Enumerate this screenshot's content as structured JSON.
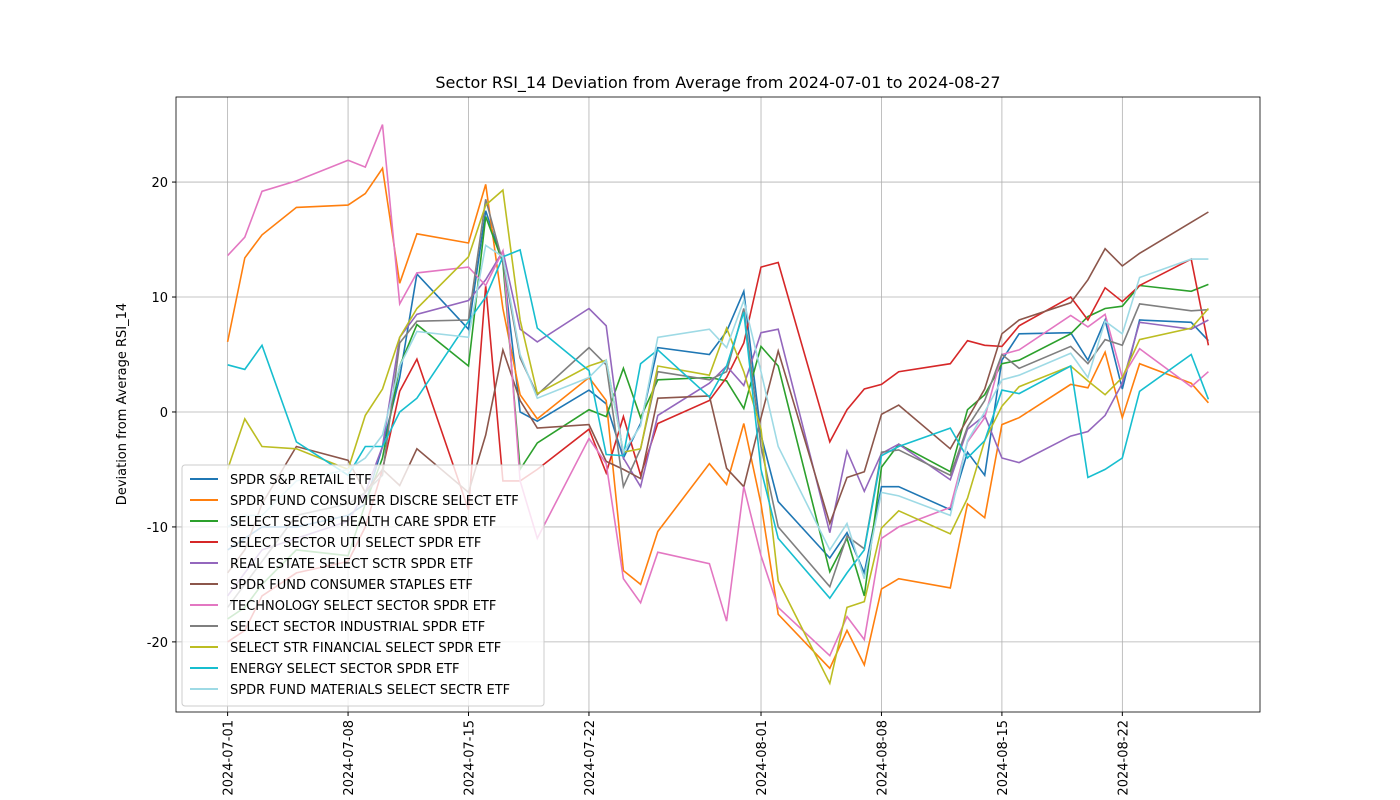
{
  "chart_data": {
    "type": "line",
    "title": "Sector RSI_14 Deviation from Average from 2024-07-01 to 2024-08-27",
    "y_label": "Deviation from Average RSI_14",
    "x": [
      "2024-07-01",
      "2024-07-02",
      "2024-07-03",
      "2024-07-05",
      "2024-07-08",
      "2024-07-09",
      "2024-07-10",
      "2024-07-11",
      "2024-07-12",
      "2024-07-15",
      "2024-07-16",
      "2024-07-17",
      "2024-07-18",
      "2024-07-19",
      "2024-07-22",
      "2024-07-23",
      "2024-07-24",
      "2024-07-25",
      "2024-07-26",
      "2024-07-29",
      "2024-07-30",
      "2024-07-31",
      "2024-08-01",
      "2024-08-02",
      "2024-08-05",
      "2024-08-06",
      "2024-08-07",
      "2024-08-08",
      "2024-08-09",
      "2024-08-12",
      "2024-08-13",
      "2024-08-14",
      "2024-08-15",
      "2024-08-16",
      "2024-08-19",
      "2024-08-20",
      "2024-08-21",
      "2024-08-22",
      "2024-08-23",
      "2024-08-26",
      "2024-08-27"
    ],
    "xlim": [
      "2024-06-28",
      "2024-08-30"
    ],
    "xticks": [
      "2024-07-01",
      "2024-07-08",
      "2024-07-15",
      "2024-07-22",
      "2024-08-01",
      "2024-08-08",
      "2024-08-15",
      "2024-08-22"
    ],
    "ylim": [
      -26.1,
      27.4
    ],
    "yticks": [
      -20,
      -10,
      0,
      10,
      20
    ],
    "grid": true,
    "legend": "lower left",
    "series": [
      {
        "name": "SPDR S&P RETAIL ETF",
        "color": "#1f77b4",
        "values": [
          -12,
          -11,
          -10,
          -10,
          -9,
          -8,
          -3,
          3,
          12,
          7.2,
          17.5,
          13,
          0,
          -0.8,
          1.9,
          0.7,
          -4,
          -1,
          5.6,
          5,
          7,
          10.5,
          -2,
          -7.8,
          -12.7,
          -10.5,
          -14,
          -6.5,
          -6.5,
          -8.5,
          -3.5,
          -5.5,
          4.5,
          6.8,
          6.9,
          4.5,
          8,
          2,
          8,
          7.8,
          6.2
        ]
      },
      {
        "name": "SPDR FUND CONSUMER DISCRE SELECT ETF",
        "color": "#ff7f0e",
        "values": [
          6.1,
          13.4,
          15.4,
          17.8,
          18,
          19,
          21.2,
          11.2,
          15.5,
          14.7,
          19.8,
          9,
          1.5,
          -0.6,
          3,
          1,
          -13.8,
          -15,
          -10.4,
          -4.5,
          -6.3,
          -1,
          -8,
          -17.6,
          -22.3,
          -19,
          -22,
          -15.4,
          -14.5,
          -15.3,
          -8,
          -9.2,
          -1.1,
          -0.5,
          2.4,
          2.1,
          5.2,
          -0.5,
          4.2,
          2.5,
          0.8
        ]
      },
      {
        "name": "SELECT SECTOR HEALTH CARE SPDR ETF",
        "color": "#2ca02c",
        "values": [
          -18,
          -17,
          -15,
          -12,
          -12.5,
          -8,
          -4,
          4,
          7.6,
          4,
          17,
          13,
          -5,
          -2.7,
          0.2,
          -0.4,
          3.8,
          -0.5,
          2.8,
          3,
          2.7,
          0.3,
          5.7,
          4,
          -13.9,
          -11,
          -16,
          -4.8,
          -2.8,
          -5.2,
          0.2,
          1.5,
          4.2,
          4.5,
          6.8,
          8.3,
          9,
          9.2,
          11,
          10.5,
          11.1
        ]
      },
      {
        "name": "SELECT SECTOR UTI SELECT SPDR ETF",
        "color": "#d62728",
        "values": [
          -20,
          -19,
          -16,
          -14,
          -13,
          -10,
          -5,
          1.8,
          4.6,
          -8.5,
          11,
          -6,
          -6,
          -5,
          -1.5,
          -5.3,
          -0.4,
          -5.5,
          -1,
          1,
          3,
          6,
          12.6,
          13,
          -2.6,
          0.2,
          2,
          2.4,
          3.5,
          4.2,
          6.2,
          5.8,
          5.7,
          7.5,
          10,
          8,
          10.8,
          9.6,
          11,
          13.3,
          5.8
        ]
      },
      {
        "name": "REAL ESTATE SELECT SCTR SPDR ETF",
        "color": "#9467bd",
        "values": [
          -16,
          -14,
          -12,
          -11,
          -9.5,
          -7,
          -3,
          6.5,
          8.5,
          9.7,
          11.5,
          14,
          7.2,
          6.1,
          9,
          7.5,
          -4,
          -6.5,
          -0.3,
          2.5,
          4,
          2.3,
          6.9,
          7.2,
          -10.5,
          -3.4,
          -6.9,
          -3.6,
          -2.8,
          -5.9,
          -1.5,
          -0.3,
          -4,
          -4.4,
          -2.1,
          -1.7,
          -0.3,
          2.5,
          7.8,
          7.2,
          8
        ]
      },
      {
        "name": "SPDR FUND CONSUMER STAPLES ETF",
        "color": "#8c564b",
        "values": [
          -14,
          -12,
          -8,
          -3,
          -4.2,
          -7,
          -5,
          -6.4,
          -3.2,
          -7,
          -2,
          5.4,
          1,
          -1.4,
          -1.1,
          -4.3,
          -5,
          -5.8,
          1.2,
          1.4,
          -4.9,
          -6.5,
          -0.5,
          5.3,
          -9.7,
          -5.7,
          -5.2,
          -0.2,
          0.6,
          -3.2,
          -0.6,
          2,
          6.8,
          8,
          9.5,
          11.5,
          14.2,
          12.7,
          13.8,
          16.5,
          17.4
        ]
      },
      {
        "name": "TECHNOLOGY SELECT SECTOR SPDR ETF",
        "color": "#e377c2",
        "values": [
          13.6,
          15.2,
          19.2,
          20.1,
          21.9,
          21.3,
          25,
          9.4,
          12.1,
          12.6,
          11,
          14,
          -6,
          -11,
          -2.3,
          -4.5,
          -14.5,
          -16.6,
          -12.2,
          -13.2,
          -18.2,
          -6.5,
          -12.5,
          -17,
          -21.2,
          -17.8,
          -19.8,
          -11,
          -10,
          -8.3,
          -2.6,
          -0.5,
          5,
          5.4,
          8.4,
          7.4,
          8.5,
          3,
          5.5,
          2.2,
          3.5
        ]
      },
      {
        "name": "SELECT SECTOR INDUSTRIAL SPDR ETF",
        "color": "#7f7f7f",
        "values": [
          -17,
          -15,
          -13,
          -9,
          -8,
          -7,
          -5.5,
          6,
          7.9,
          8,
          18.5,
          13,
          4.7,
          1.5,
          5.6,
          4.1,
          -6.5,
          -3.2,
          3.5,
          2.8,
          3.5,
          9,
          -3,
          -10,
          -15.2,
          -10.8,
          -11.9,
          -3.5,
          -3.3,
          -5.5,
          -1.3,
          1,
          5,
          3.8,
          5.7,
          4.2,
          6.3,
          5.8,
          9.4,
          8.8,
          8.9
        ]
      },
      {
        "name": "SELECT STR FINANCIAL SELECT SPDR ETF",
        "color": "#bcbd22",
        "values": [
          -5,
          -0.6,
          -3,
          -3.2,
          -5,
          -0.3,
          2,
          6.5,
          9,
          13.5,
          18,
          19.3,
          8,
          1.6,
          4,
          4.5,
          -3.5,
          -3.2,
          4,
          3.2,
          7.3,
          3.5,
          -1.5,
          -14.7,
          -23.6,
          -17,
          -16.5,
          -10.1,
          -8.6,
          -10.6,
          -7.5,
          -2.5,
          0.5,
          2.2,
          4,
          2.7,
          1.5,
          3,
          6.3,
          7.3,
          9
        ]
      },
      {
        "name": "ENERGY SELECT SECTOR SPDR ETF",
        "color": "#17becf",
        "values": [
          4.1,
          3.7,
          5.8,
          -2.6,
          -5.5,
          -3,
          -3,
          0,
          1.2,
          7.9,
          10,
          13.5,
          14.1,
          7.3,
          3.6,
          -3.7,
          -3.8,
          4.2,
          5.4,
          1.3,
          4,
          8.7,
          -5,
          -11,
          -16.2,
          -14,
          -12,
          -3.8,
          -3,
          -1.4,
          -4,
          -2.5,
          1.9,
          1.6,
          4,
          -5.7,
          -5,
          -4,
          1.8,
          5,
          1.1
        ]
      },
      {
        "name": "SPDR FUND MATERIALS SELECT SECTR ETF",
        "color": "#9edae5",
        "values": [
          -10,
          -9,
          -9,
          -6,
          -5,
          -4,
          -2,
          4,
          7,
          6.5,
          14.5,
          13.5,
          5,
          1.2,
          3,
          4.5,
          -3.5,
          -1.2,
          6.5,
          7.2,
          5.6,
          9.7,
          3.5,
          -3,
          -12,
          -9.7,
          -14.5,
          -7,
          -7.3,
          -9,
          -2.5,
          0,
          2.8,
          3.2,
          5.1,
          3,
          7.9,
          6.8,
          11.7,
          13.3,
          13.3
        ]
      }
    ]
  }
}
